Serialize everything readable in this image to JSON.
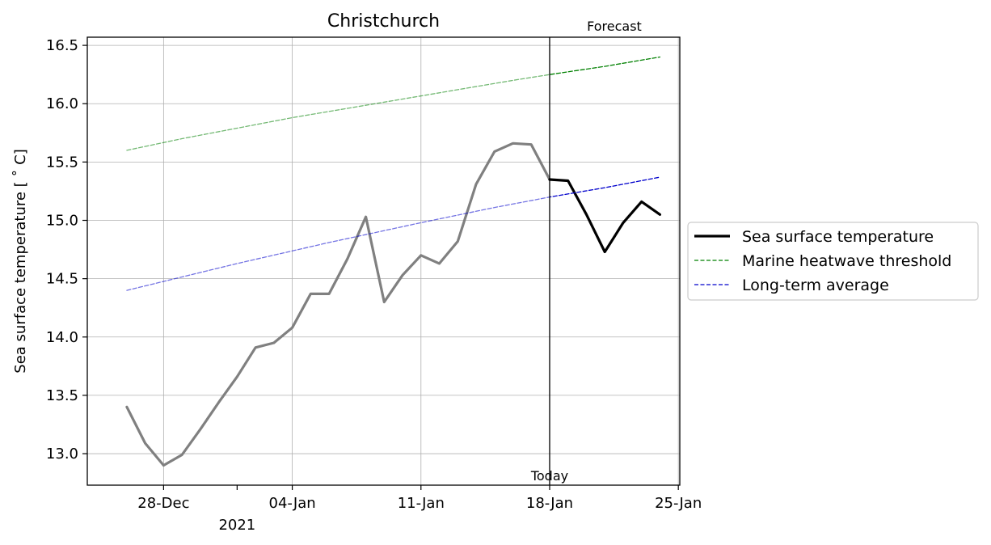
{
  "chart_data": {
    "type": "line",
    "title": "Christchurch",
    "ylabel": "Sea surface temperature [$^\\circ$C]",
    "ylabel_display": "Sea surface temperature [ ˚ C]",
    "xlabel": "",
    "x_secondary_label": "2021",
    "ylim": [
      12.73,
      16.57
    ],
    "xlim": [
      "2020-12-24",
      "2021-01-25"
    ],
    "x_ticks": [
      {
        "date": "2020-12-28",
        "label": "28-Dec"
      },
      {
        "date": "2021-01-04",
        "label": "04-Jan"
      },
      {
        "date": "2021-01-11",
        "label": "11-Jan"
      },
      {
        "date": "2021-01-18",
        "label": "18-Jan"
      },
      {
        "date": "2021-01-25",
        "label": "25-Jan"
      }
    ],
    "x_minor_ticks": [
      "2021-01-01"
    ],
    "y_ticks": [
      13.0,
      13.5,
      14.0,
      14.5,
      15.0,
      15.5,
      16.0,
      16.5
    ],
    "y_tick_labels": [
      "13.0",
      "13.5",
      "14.0",
      "14.5",
      "15.0",
      "15.5",
      "16.0",
      "16.5"
    ],
    "grid": true,
    "legend_position": "outside-right",
    "today": {
      "date": "2021-01-18",
      "label": "Today"
    },
    "forecast_label": "Forecast",
    "series": [
      {
        "name": "Sea surface temperature",
        "role": "observed",
        "color": "#808080",
        "style": "solid",
        "x": [
          "2020-12-26",
          "2020-12-27",
          "2020-12-28",
          "2020-12-29",
          "2020-12-30",
          "2020-12-31",
          "2021-01-01",
          "2021-01-02",
          "2021-01-03",
          "2021-01-04",
          "2021-01-05",
          "2021-01-06",
          "2021-01-07",
          "2021-01-08",
          "2021-01-09",
          "2021-01-10",
          "2021-01-11",
          "2021-01-12",
          "2021-01-13",
          "2021-01-14",
          "2021-01-15",
          "2021-01-16",
          "2021-01-17",
          "2021-01-18"
        ],
        "y": [
          13.4,
          13.09,
          12.9,
          12.99,
          13.21,
          13.44,
          13.66,
          13.91,
          13.95,
          14.08,
          14.37,
          14.37,
          14.67,
          15.03,
          14.3,
          14.53,
          14.7,
          14.63,
          14.82,
          15.31,
          15.59,
          15.66,
          15.65,
          15.35
        ]
      },
      {
        "name": "Sea surface temperature",
        "role": "forecast",
        "legend": true,
        "color": "#000000",
        "style": "solid",
        "x": [
          "2021-01-18",
          "2021-01-19",
          "2021-01-20",
          "2021-01-21",
          "2021-01-22",
          "2021-01-23",
          "2021-01-24"
        ],
        "y": [
          15.35,
          15.34,
          15.05,
          14.73,
          14.98,
          15.16,
          15.05
        ]
      },
      {
        "name": "Marine heatwave threshold",
        "legend": true,
        "color": "#008000",
        "style": "dashed",
        "x": [
          "2020-12-26",
          "2020-12-29",
          "2021-01-01",
          "2021-01-04",
          "2021-01-07",
          "2021-01-10",
          "2021-01-13",
          "2021-01-16",
          "2021-01-18",
          "2021-01-21",
          "2021-01-24"
        ],
        "y": [
          15.6,
          15.7,
          15.79,
          15.88,
          15.96,
          16.04,
          16.12,
          16.2,
          16.25,
          16.32,
          16.4
        ]
      },
      {
        "name": "Long-term average",
        "legend": true,
        "color": "#0000cc",
        "style": "dashed",
        "x": [
          "2020-12-26",
          "2021-01-01",
          "2021-01-06",
          "2021-01-11",
          "2021-01-15",
          "2021-01-18",
          "2021-01-21",
          "2021-01-24"
        ],
        "y": [
          14.4,
          14.63,
          14.81,
          14.98,
          15.11,
          15.2,
          15.28,
          15.37
        ]
      }
    ]
  }
}
